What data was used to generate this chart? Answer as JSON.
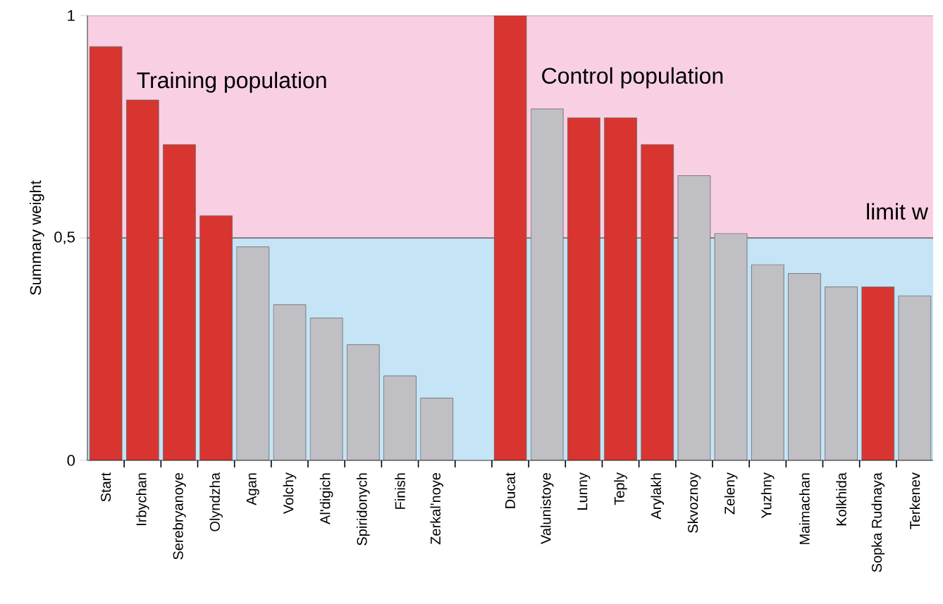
{
  "chart_data": {
    "type": "bar",
    "ylabel": "Summary weight",
    "categories": [
      "Start",
      "Irbychan",
      "Serebryanoye",
      "Olyndzha",
      "Agan",
      "Volchy",
      "Al'digich",
      "Spiridonych",
      "Finish",
      "Zerkal'noye",
      null,
      "Ducat",
      "Valunistoye",
      "Lunny",
      "Teply",
      "Arylakh",
      "Skvoznoy",
      "Zeleny",
      "Yuzhny",
      "Maimachan",
      "Kolkhida",
      "Sopka Rudnaya",
      "Terkenev"
    ],
    "values": [
      0.93,
      0.81,
      0.71,
      0.55,
      0.48,
      0.35,
      0.32,
      0.26,
      0.19,
      0.14,
      null,
      1.0,
      0.79,
      0.77,
      0.77,
      0.71,
      0.64,
      0.51,
      0.44,
      0.42,
      0.39,
      0.39,
      0.37
    ],
    "colors": [
      "#d93530",
      "#d93530",
      "#d93530",
      "#d93530",
      "#c0c0c4",
      "#c0c0c4",
      "#c0c0c4",
      "#c0c0c4",
      "#c0c0c4",
      "#c0c0c4",
      "#c0c0c4",
      "#d93530",
      "#c0c0c4",
      "#d93530",
      "#d93530",
      "#d93530",
      "#c0c0c4",
      "#c0c0c4",
      "#c0c0c4",
      "#c0c0c4",
      "#c0c0c4",
      "#d93530",
      "#c0c0c4"
    ],
    "ylim": [
      0,
      1
    ],
    "yticks": [
      0,
      {
        "value": 0.5,
        "label": "0,5"
      },
      1
    ],
    "bands": [
      {
        "axis": "y",
        "from": 0.5,
        "to": 1,
        "color": "#f9d0e3"
      },
      {
        "axis": "y",
        "from": 0,
        "to": 0.5,
        "color": "#c5e4f6"
      }
    ],
    "ref_lines": [
      {
        "axis": "y",
        "value": 0.5,
        "label": "limit w",
        "color": "#606060"
      }
    ],
    "annotations": [
      "Training population",
      "Control population"
    ],
    "grid": false
  }
}
